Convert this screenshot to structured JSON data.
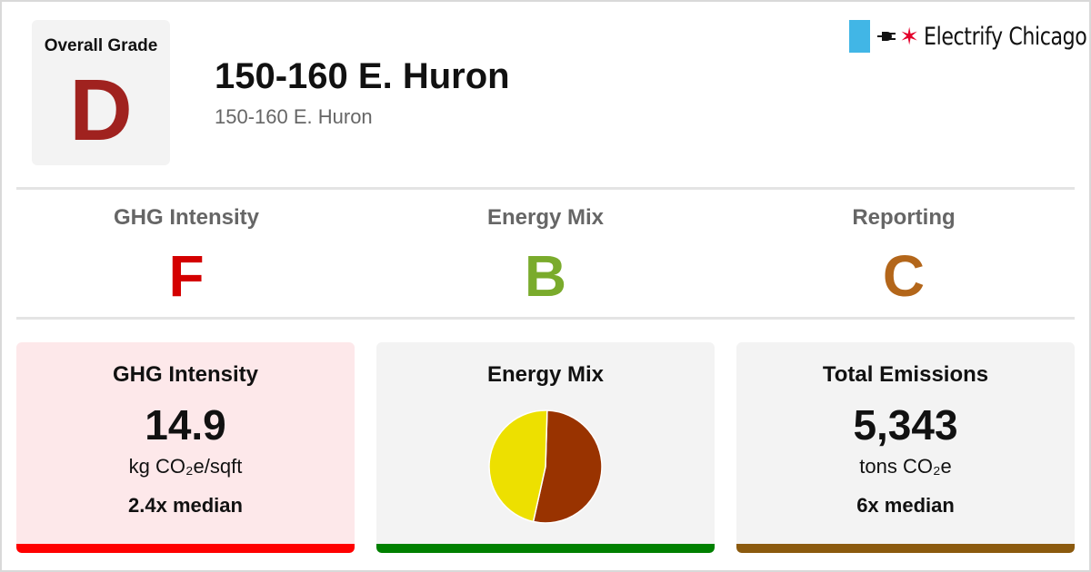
{
  "overall": {
    "label": "Overall Grade",
    "grade": "D",
    "grade_color": "#a0221f"
  },
  "building": {
    "name": "150-160 E. Huron",
    "address": "150-160 E. Huron"
  },
  "logo": {
    "text": "Electrify Chicago",
    "flag_color": "#41b6e6",
    "star_color": "#e4002b",
    "icons": [
      "plug-icon",
      "star-icon"
    ]
  },
  "subgrades": [
    {
      "label": "GHG Intensity",
      "grade": "F",
      "color": "#d40000"
    },
    {
      "label": "Energy Mix",
      "grade": "B",
      "color": "#7aab2c"
    },
    {
      "label": "Reporting",
      "grade": "C",
      "color": "#b3661a"
    }
  ],
  "cards": {
    "ghg": {
      "title": "GHG Intensity",
      "value": "14.9",
      "unit": "kg CO₂e/sqft",
      "median": "2.4x median",
      "bg_color": "#fde8ea",
      "bar_color": "#ff0000"
    },
    "energy_mix": {
      "title": "Energy Mix",
      "bg_color": "#f3f3f3",
      "bar_color": "#008000"
    },
    "emissions": {
      "title": "Total Emissions",
      "value": "5,343",
      "unit": "tons CO₂e",
      "median": "6x median",
      "bg_color": "#f3f3f3",
      "bar_color": "#8b5a0e"
    }
  },
  "chart_data": {
    "type": "pie",
    "title": "Energy Mix",
    "slices": [
      {
        "value": 0.53,
        "color": "#993300"
      },
      {
        "value": 0.47,
        "color": "#ede000"
      }
    ]
  }
}
